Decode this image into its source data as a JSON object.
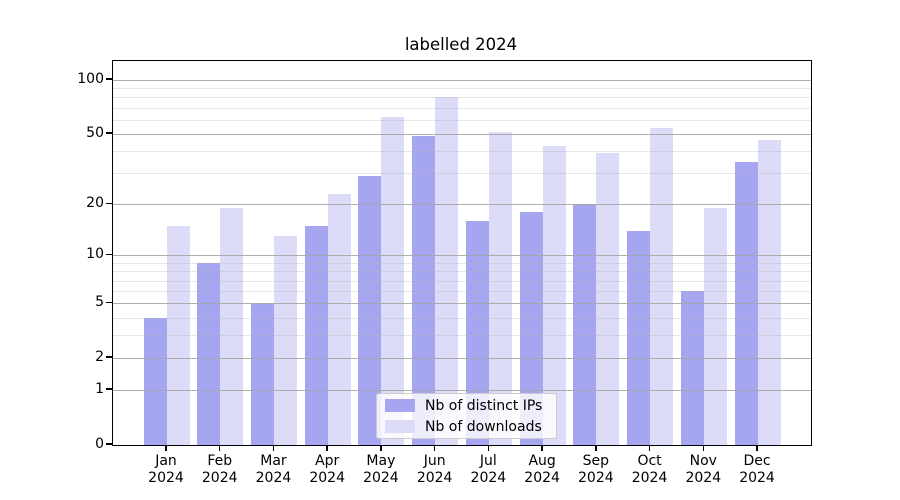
{
  "title": "labelled 2024",
  "legend": {
    "items": [
      {
        "label": "Nb of distinct IPs",
        "color": "#a5a5f0"
      },
      {
        "label": "Nb of downloads",
        "color": "#dcdcf8"
      }
    ]
  },
  "chart_data": {
    "type": "bar",
    "title": "labelled 2024",
    "categories": [
      "Jan 2024",
      "Feb 2024",
      "Mar 2024",
      "Apr 2024",
      "May 2024",
      "Jun 2024",
      "Jul 2024",
      "Aug 2024",
      "Sep 2024",
      "Oct 2024",
      "Nov 2024",
      "Dec 2024"
    ],
    "series": [
      {
        "name": "Nb of distinct IPs",
        "color": "#a5a5f0",
        "values": [
          4,
          9,
          5,
          15,
          29,
          49,
          16,
          18,
          20,
          14,
          6,
          35
        ]
      },
      {
        "name": "Nb of downloads",
        "color": "#dcdcf8",
        "values": [
          15,
          19,
          13,
          23,
          62,
          80,
          51,
          43,
          39,
          54,
          19,
          46
        ]
      }
    ],
    "xlabel": "",
    "ylabel": "",
    "yscale": "log1p",
    "ylim": [
      0,
      127.4
    ],
    "y_major_ticks": [
      0,
      1,
      2,
      5,
      10,
      20,
      50,
      100
    ],
    "y_minor_gridlines": [
      3,
      4,
      6,
      7,
      8,
      9,
      30,
      40,
      60,
      70,
      80,
      90
    ],
    "grid": true,
    "legend_position": "lower center"
  }
}
